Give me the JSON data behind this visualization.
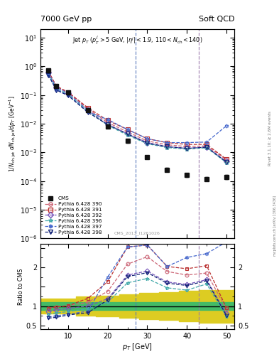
{
  "title_left": "7000 GeV pp",
  "title_right": "Soft QCD",
  "right_label": "Rivet 3.1.10; ≥ 2.6M events",
  "arxiv_label": "mcplots.cern.ch [arXiv:1306.3436]",
  "watermark": "CMS_2013_I1261026",
  "xlim": [
    3,
    52
  ],
  "ylim_main": [
    1e-06,
    20
  ],
  "ylim_ratio": [
    0.4,
    2.6
  ],
  "vlines": [
    27,
    43
  ],
  "vline_colors": [
    "#5577bb",
    "#9977aa"
  ],
  "cms_x": [
    5.0,
    7.0,
    10.0,
    15.0,
    20.0,
    25.0,
    30.0,
    35.0,
    40.0,
    45.0,
    50.0
  ],
  "cms_y": [
    0.72,
    0.21,
    0.125,
    0.03,
    0.008,
    0.0025,
    0.0007,
    0.00025,
    0.00016,
    0.00012,
    0.00014
  ],
  "cms_yerr": [
    0.07,
    0.022,
    0.013,
    0.003,
    0.0008,
    0.0003,
    9e-05,
    3.5e-05,
    2.5e-05,
    1.8e-05,
    2.5e-05
  ],
  "py390_x": [
    5.0,
    7.0,
    10.0,
    15.0,
    20.0,
    25.0,
    30.0,
    35.0,
    40.0,
    45.0,
    50.0
  ],
  "py390_y": [
    0.68,
    0.205,
    0.126,
    0.033,
    0.011,
    0.0052,
    0.0025,
    0.00185,
    0.0016,
    0.0017,
    0.00055
  ],
  "py391_x": [
    5.0,
    7.0,
    10.0,
    15.0,
    20.0,
    25.0,
    30.0,
    35.0,
    40.0,
    45.0,
    50.0
  ],
  "py391_y": [
    0.68,
    0.205,
    0.126,
    0.036,
    0.013,
    0.0063,
    0.003,
    0.0022,
    0.0019,
    0.0019,
    0.00058
  ],
  "py392_x": [
    5.0,
    7.0,
    10.0,
    15.0,
    20.0,
    25.0,
    30.0,
    35.0,
    40.0,
    45.0,
    50.0
  ],
  "py392_y": [
    0.62,
    0.188,
    0.117,
    0.03,
    0.0095,
    0.0045,
    0.0022,
    0.0016,
    0.0014,
    0.00155,
    0.00048
  ],
  "py396_x": [
    5.0,
    7.0,
    10.0,
    15.0,
    20.0,
    25.0,
    30.0,
    35.0,
    40.0,
    45.0,
    50.0
  ],
  "py396_y": [
    0.57,
    0.172,
    0.108,
    0.028,
    0.0088,
    0.004,
    0.002,
    0.00148,
    0.0013,
    0.00145,
    0.00044
  ],
  "py397_x": [
    5.0,
    7.0,
    10.0,
    15.0,
    20.0,
    25.0,
    30.0,
    35.0,
    40.0,
    45.0,
    50.0
  ],
  "py397_y": [
    0.52,
    0.158,
    0.099,
    0.026,
    0.014,
    0.0063,
    0.003,
    0.0022,
    0.0022,
    0.0023,
    0.0085
  ],
  "py398_x": [
    5.0,
    7.0,
    10.0,
    15.0,
    20.0,
    25.0,
    30.0,
    35.0,
    40.0,
    45.0,
    50.0
  ],
  "py398_y": [
    0.5,
    0.15,
    0.096,
    0.025,
    0.0093,
    0.0044,
    0.0021,
    0.00158,
    0.00138,
    0.00152,
    0.00046
  ],
  "ratio390_y": [
    0.94,
    0.98,
    1.01,
    1.1,
    1.38,
    2.08,
    2.27,
    1.89,
    1.8,
    1.85,
    0.92
  ],
  "ratio391_y": [
    0.94,
    0.98,
    1.01,
    1.2,
    1.63,
    2.52,
    2.57,
    2.02,
    1.96,
    2.04,
    0.95
  ],
  "ratio392_y": [
    0.86,
    0.9,
    0.94,
    1.0,
    1.19,
    1.8,
    1.9,
    1.62,
    1.56,
    1.68,
    0.8
  ],
  "ratio396_y": [
    0.79,
    0.82,
    0.86,
    0.93,
    1.1,
    1.6,
    1.71,
    1.47,
    1.41,
    1.57,
    0.73
  ],
  "ratio397_y": [
    0.72,
    0.75,
    0.79,
    0.87,
    1.75,
    2.52,
    2.57,
    2.02,
    2.25,
    2.35,
    14.0
  ],
  "ratio398_y": [
    0.69,
    0.71,
    0.77,
    0.83,
    1.16,
    1.76,
    1.86,
    1.59,
    1.53,
    1.65,
    0.76
  ],
  "green_band_x": [
    3,
    6,
    8,
    12,
    17,
    23,
    28,
    33,
    38,
    43,
    52
  ],
  "green_band_lo": [
    0.9,
    0.9,
    0.9,
    0.9,
    0.9,
    0.9,
    0.9,
    0.9,
    0.9,
    0.9,
    0.9
  ],
  "green_band_hi": [
    1.1,
    1.1,
    1.1,
    1.1,
    1.1,
    1.1,
    1.1,
    1.1,
    1.1,
    1.1,
    1.1
  ],
  "yellow_band_x": [
    3,
    6,
    8,
    12,
    17,
    23,
    28,
    33,
    38,
    43,
    52
  ],
  "yellow_band_lo": [
    0.8,
    0.8,
    0.8,
    0.76,
    0.73,
    0.7,
    0.67,
    0.64,
    0.61,
    0.58,
    0.55
  ],
  "yellow_band_hi": [
    1.2,
    1.2,
    1.2,
    1.24,
    1.27,
    1.3,
    1.33,
    1.36,
    1.39,
    1.42,
    1.45
  ],
  "colors": {
    "cms": "#111111",
    "py390": "#cc6677",
    "py391": "#bb3333",
    "py392": "#7755bb",
    "py396": "#44aaaa",
    "py397": "#4466cc",
    "py398": "#112277",
    "green": "#44bb66",
    "yellow": "#ddcc22"
  }
}
